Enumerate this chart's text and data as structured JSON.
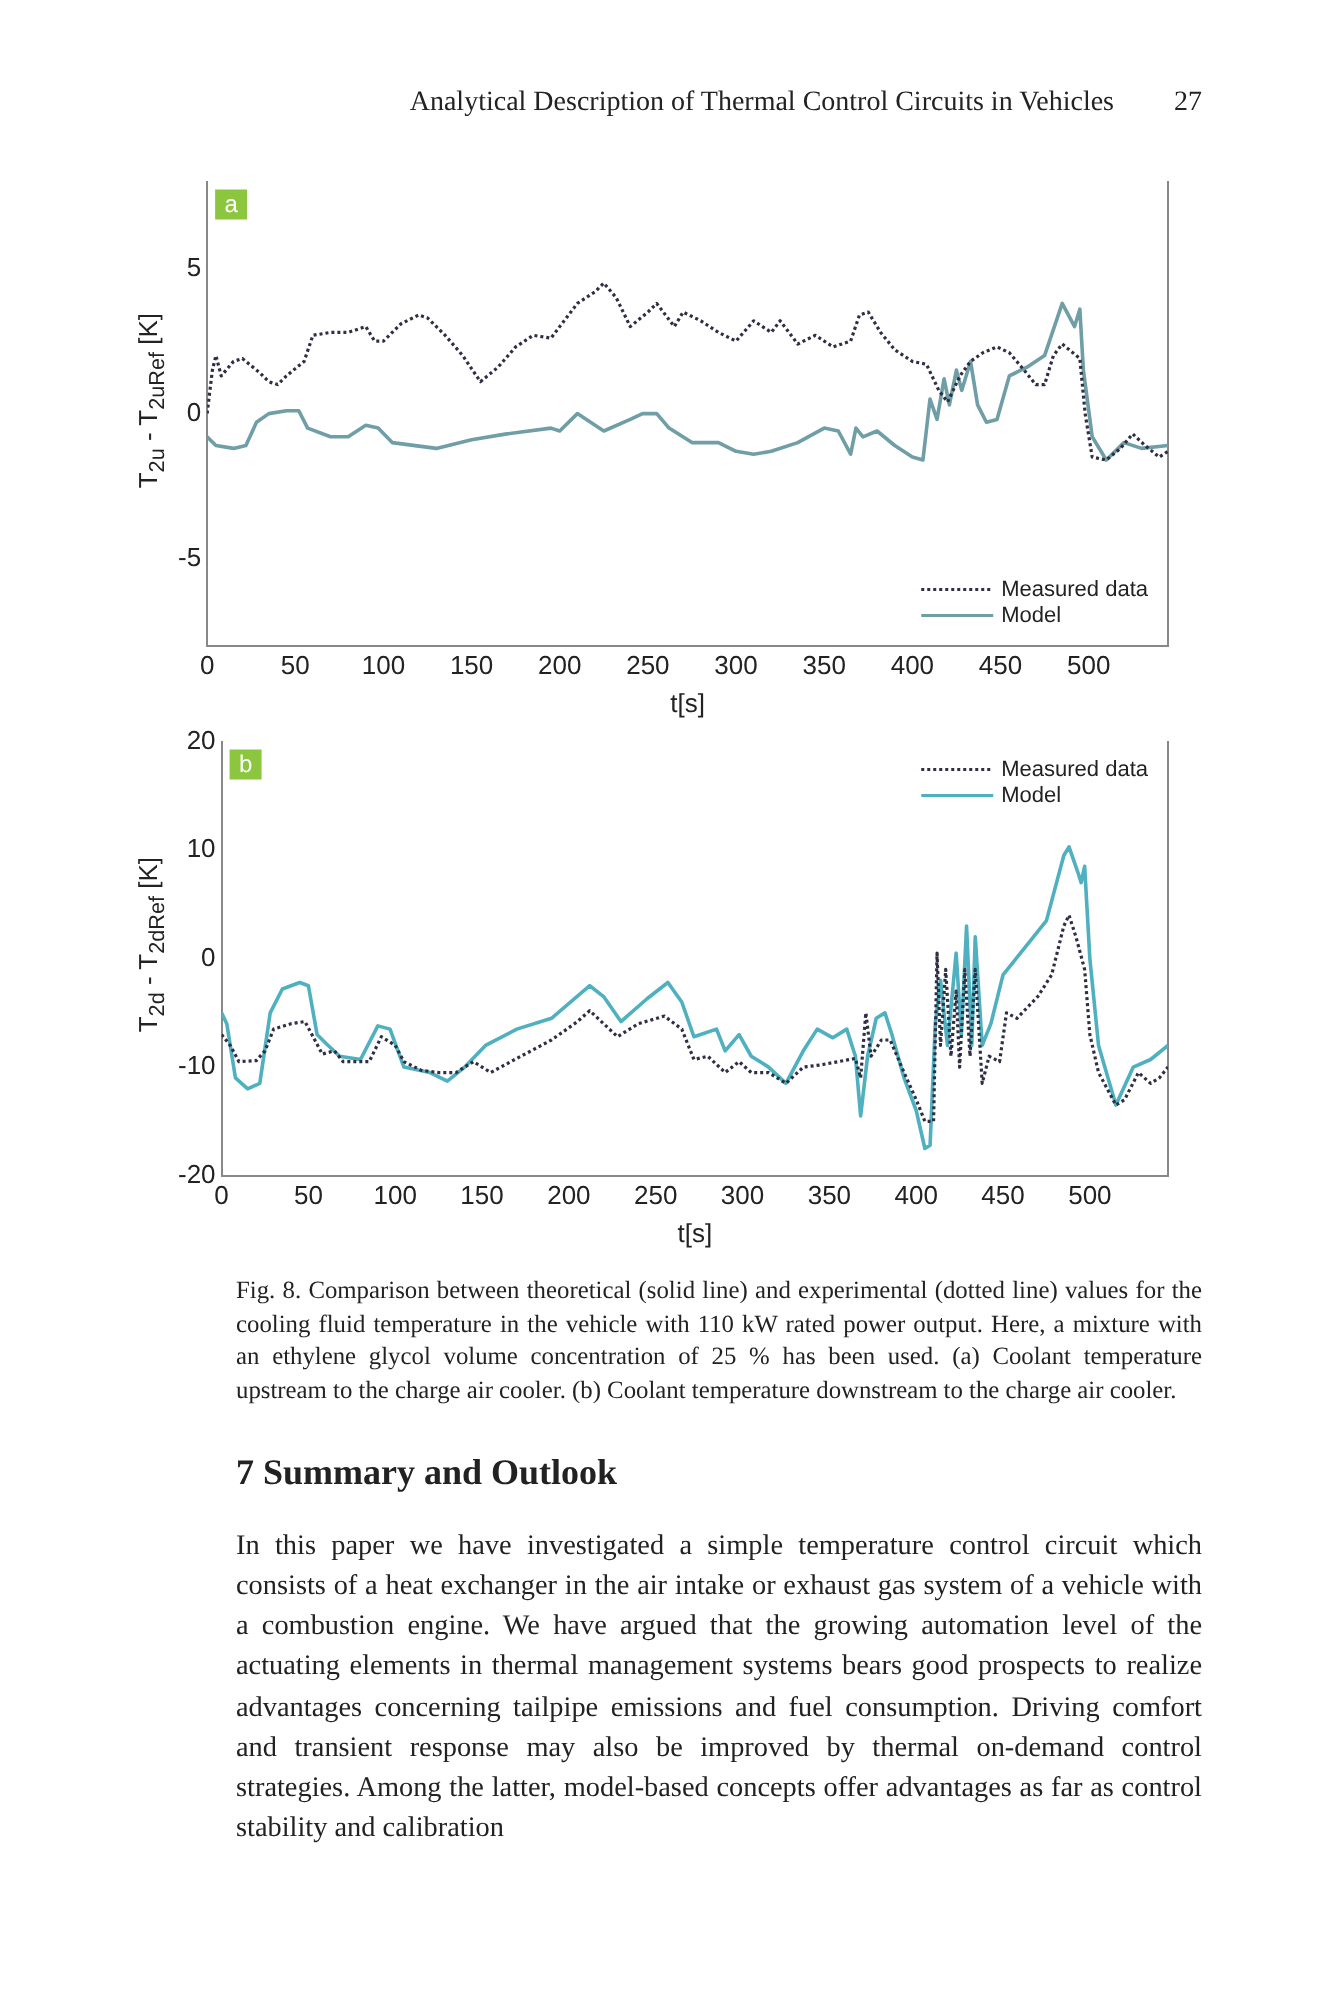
{
  "chart_data": [
    {
      "type": "line",
      "title": "a",
      "xlabel": "t[s]",
      "ylabel": "T$_{2u}$ - T$_{2uRef}$ [K]",
      "xlim": [
        0,
        545
      ],
      "xticks": [
        0,
        50,
        100,
        150,
        200,
        250,
        300,
        350,
        400,
        450,
        500
      ],
      "ylim": [
        -8,
        8
      ],
      "yticks": [
        -5,
        0,
        5
      ],
      "grid": false,
      "legend": "bottom right",
      "marker": "none",
      "annotations": [
        "Analytical Description of Thermal Control Circuits in Vehicles",
        "27"
      ],
      "series": [
        {
          "name": "Measured data",
          "color": "#2e2e44",
          "line_style": "dotted",
          "x": [
            0,
            3,
            5,
            8,
            15,
            20,
            30,
            35,
            40,
            45,
            55,
            60,
            70,
            80,
            90,
            95,
            100,
            110,
            120,
            125,
            135,
            145,
            155,
            165,
            175,
            185,
            195,
            200,
            210,
            220,
            225,
            232,
            240,
            250,
            255,
            265,
            270,
            280,
            290,
            300,
            310,
            320,
            325,
            335,
            345,
            355,
            365,
            370,
            375,
            382,
            390,
            400,
            408,
            415,
            420,
            427,
            433,
            440,
            448,
            455,
            462,
            470,
            475,
            480,
            485,
            495,
            498,
            502,
            510,
            518,
            525,
            532,
            540,
            545
          ],
          "values": [
            0,
            1.5,
            2.0,
            1.3,
            1.8,
            1.9,
            1.4,
            1.1,
            1.0,
            1.3,
            1.8,
            2.7,
            2.8,
            2.8,
            3.0,
            2.5,
            2.5,
            3.1,
            3.4,
            3.3,
            2.7,
            2.0,
            1.1,
            1.6,
            2.3,
            2.7,
            2.6,
            3.0,
            3.8,
            4.2,
            4.5,
            4.0,
            3.0,
            3.5,
            3.8,
            3.0,
            3.5,
            3.2,
            2.8,
            2.5,
            3.2,
            2.8,
            3.2,
            2.4,
            2.7,
            2.3,
            2.5,
            3.4,
            3.5,
            2.8,
            2.2,
            1.8,
            1.7,
            0.8,
            0.4,
            1.3,
            1.8,
            2.1,
            2.3,
            2.1,
            1.6,
            1.0,
            1.0,
            2.0,
            2.4,
            1.9,
            0.0,
            -1.5,
            -1.6,
            -1.2,
            -0.7,
            -1.1,
            -1.5,
            -1.3
          ]
        },
        {
          "name": "Model",
          "color": "#6f9ea6",
          "line_style": "solid",
          "x": [
            0,
            5,
            15,
            22,
            28,
            35,
            45,
            52,
            57,
            70,
            80,
            90,
            97,
            105,
            130,
            150,
            170,
            195,
            200,
            210,
            225,
            240,
            247,
            255,
            262,
            275,
            290,
            300,
            310,
            320,
            335,
            350,
            358,
            365,
            368,
            372,
            380,
            390,
            400,
            406,
            410,
            414,
            418,
            421,
            425,
            428,
            433,
            437,
            442,
            448,
            455,
            465,
            475,
            485,
            492,
            495,
            497,
            502,
            510,
            520,
            530,
            545
          ],
          "values": [
            -0.8,
            -1.1,
            -1.2,
            -1.1,
            -0.3,
            0.0,
            0.1,
            0.1,
            -0.5,
            -0.8,
            -0.8,
            -0.4,
            -0.5,
            -1.0,
            -1.2,
            -0.9,
            -0.7,
            -0.5,
            -0.6,
            0.0,
            -0.6,
            -0.2,
            0.0,
            0.0,
            -0.5,
            -1.0,
            -1.0,
            -1.3,
            -1.4,
            -1.3,
            -1.0,
            -0.5,
            -0.6,
            -1.4,
            -0.5,
            -0.8,
            -0.6,
            -1.1,
            -1.5,
            -1.6,
            0.5,
            -0.2,
            1.2,
            0.3,
            1.5,
            0.8,
            1.8,
            0.3,
            -0.3,
            -0.2,
            1.3,
            1.6,
            2.0,
            3.8,
            3.0,
            3.6,
            1.5,
            -0.8,
            -1.6,
            -1.0,
            -1.2,
            -1.1
          ]
        }
      ]
    },
    {
      "type": "line",
      "title": "b",
      "xlabel": "t[s]",
      "ylabel": "T$_{2d}$ - T$_{2dRef}$ [K]",
      "xlim": [
        0,
        545
      ],
      "xticks": [
        0,
        50,
        100,
        150,
        200,
        250,
        300,
        350,
        400,
        450,
        500
      ],
      "ylim": [
        -20,
        20
      ],
      "yticks": [
        -20,
        -10,
        0,
        10,
        20
      ],
      "grid": false,
      "legend": "top right",
      "marker": "none",
      "annotations": [
        "Fig. 8. Comparison between theoretical (solid line) and experimental (dotted line) values for the cooling fluid temperature in the vehicle with 110 kW rated power output. Here, a mixture with an ethylene glycol volume concentration of 25 % has been used. (a) Coolant temperature upstream to the charge air cooler. (b) Coolant temperature downstream to the charge air cooler.",
        "7 Summary and Outlook",
        "In this paper we have investigated a simple temperature control circuit which consists of a heat exchanger in the air intake or exhaust gas system of a vehicle with a combustion engine. We have argued that the growing automation level of the actuating elements in thermal management systems bears good prospects to realize advantages concerning tailpipe emissions and fuel consumption. Driving comfort and transient response may also be improved by thermal on-demand control strategies. Among the latter, model-based concepts offer advantages as far as control stability and calibration"
      ],
      "series": [
        {
          "name": "Measured data",
          "color": "#2e2e44",
          "line_style": "dotted",
          "x": [
            0,
            5,
            10,
            20,
            25,
            30,
            40,
            48,
            52,
            58,
            65,
            70,
            85,
            92,
            100,
            105,
            115,
            125,
            135,
            145,
            155,
            170,
            190,
            205,
            212,
            220,
            228,
            240,
            255,
            265,
            272,
            280,
            290,
            298,
            305,
            315,
            325,
            335,
            345,
            365,
            368,
            371,
            374,
            380,
            385,
            393,
            400,
            405,
            410,
            412,
            414,
            417,
            420,
            423,
            425,
            428,
            431,
            434,
            438,
            442,
            448,
            452,
            458,
            470,
            478,
            485,
            488,
            492,
            497,
            500,
            505,
            515,
            520,
            528,
            535,
            540,
            545
          ],
          "values": [
            -7,
            -8,
            -9.5,
            -9.4,
            -8.5,
            -6.5,
            -6,
            -5.8,
            -7,
            -8.8,
            -8.5,
            -9.5,
            -9.5,
            -7.2,
            -8,
            -9.5,
            -10.3,
            -10.5,
            -10.5,
            -9.5,
            -10.5,
            -9.2,
            -7.5,
            -5.8,
            -4.8,
            -6,
            -7.2,
            -6,
            -5.3,
            -6.5,
            -9.3,
            -9,
            -10.5,
            -9.5,
            -10.5,
            -10.5,
            -11.5,
            -10,
            -9.8,
            -9.2,
            -11,
            -5,
            -9,
            -7.5,
            -7.5,
            -10.5,
            -13,
            -15,
            -15,
            0.5,
            -8,
            -1,
            -9,
            -3,
            -10,
            -1,
            -9,
            -1,
            -11.5,
            -9,
            -9.5,
            -5,
            -5.5,
            -3.5,
            -1.5,
            3,
            4,
            2,
            -1,
            -7,
            -10.5,
            -13.5,
            -13,
            -10.5,
            -11.5,
            -11,
            -10
          ]
        },
        {
          "name": "Model",
          "color": "#4fb0c0",
          "line_style": "solid",
          "x": [
            0,
            3,
            8,
            15,
            22,
            28,
            35,
            45,
            50,
            55,
            60,
            68,
            80,
            90,
            97,
            105,
            120,
            130,
            140,
            152,
            170,
            190,
            212,
            220,
            230,
            245,
            257,
            265,
            272,
            285,
            290,
            298,
            305,
            315,
            325,
            335,
            343,
            352,
            360,
            365,
            368,
            372,
            377,
            382,
            386,
            393,
            400,
            405,
            408,
            411,
            414,
            418,
            423,
            426,
            429,
            432,
            434,
            438,
            443,
            450,
            455,
            465,
            475,
            485,
            488,
            493,
            495,
            497,
            500,
            505,
            515,
            525,
            535,
            545
          ],
          "values": [
            -5,
            -6,
            -11,
            -12,
            -11.5,
            -5,
            -2.8,
            -2.2,
            -2.5,
            -7,
            -7.8,
            -9,
            -9.3,
            -6.2,
            -6.5,
            -10,
            -10.5,
            -11.3,
            -10,
            -8,
            -6.5,
            -5.5,
            -2.5,
            -3.5,
            -5.8,
            -3.7,
            -2.2,
            -4,
            -7.2,
            -6.5,
            -8.5,
            -7,
            -9,
            -10,
            -11.5,
            -8.5,
            -6.5,
            -7.3,
            -6.5,
            -9,
            -14.5,
            -9,
            -5.5,
            -5,
            -7,
            -11,
            -14,
            -17.5,
            -17.2,
            -6,
            -2,
            -8,
            0.5,
            -7,
            3,
            -8,
            2,
            -8,
            -6,
            -1.5,
            -0.5,
            1.5,
            3.5,
            9.5,
            10.3,
            8,
            7,
            8.5,
            0,
            -8,
            -13.5,
            -10,
            -9.3,
            -8
          ]
        }
      ]
    }
  ]
}
